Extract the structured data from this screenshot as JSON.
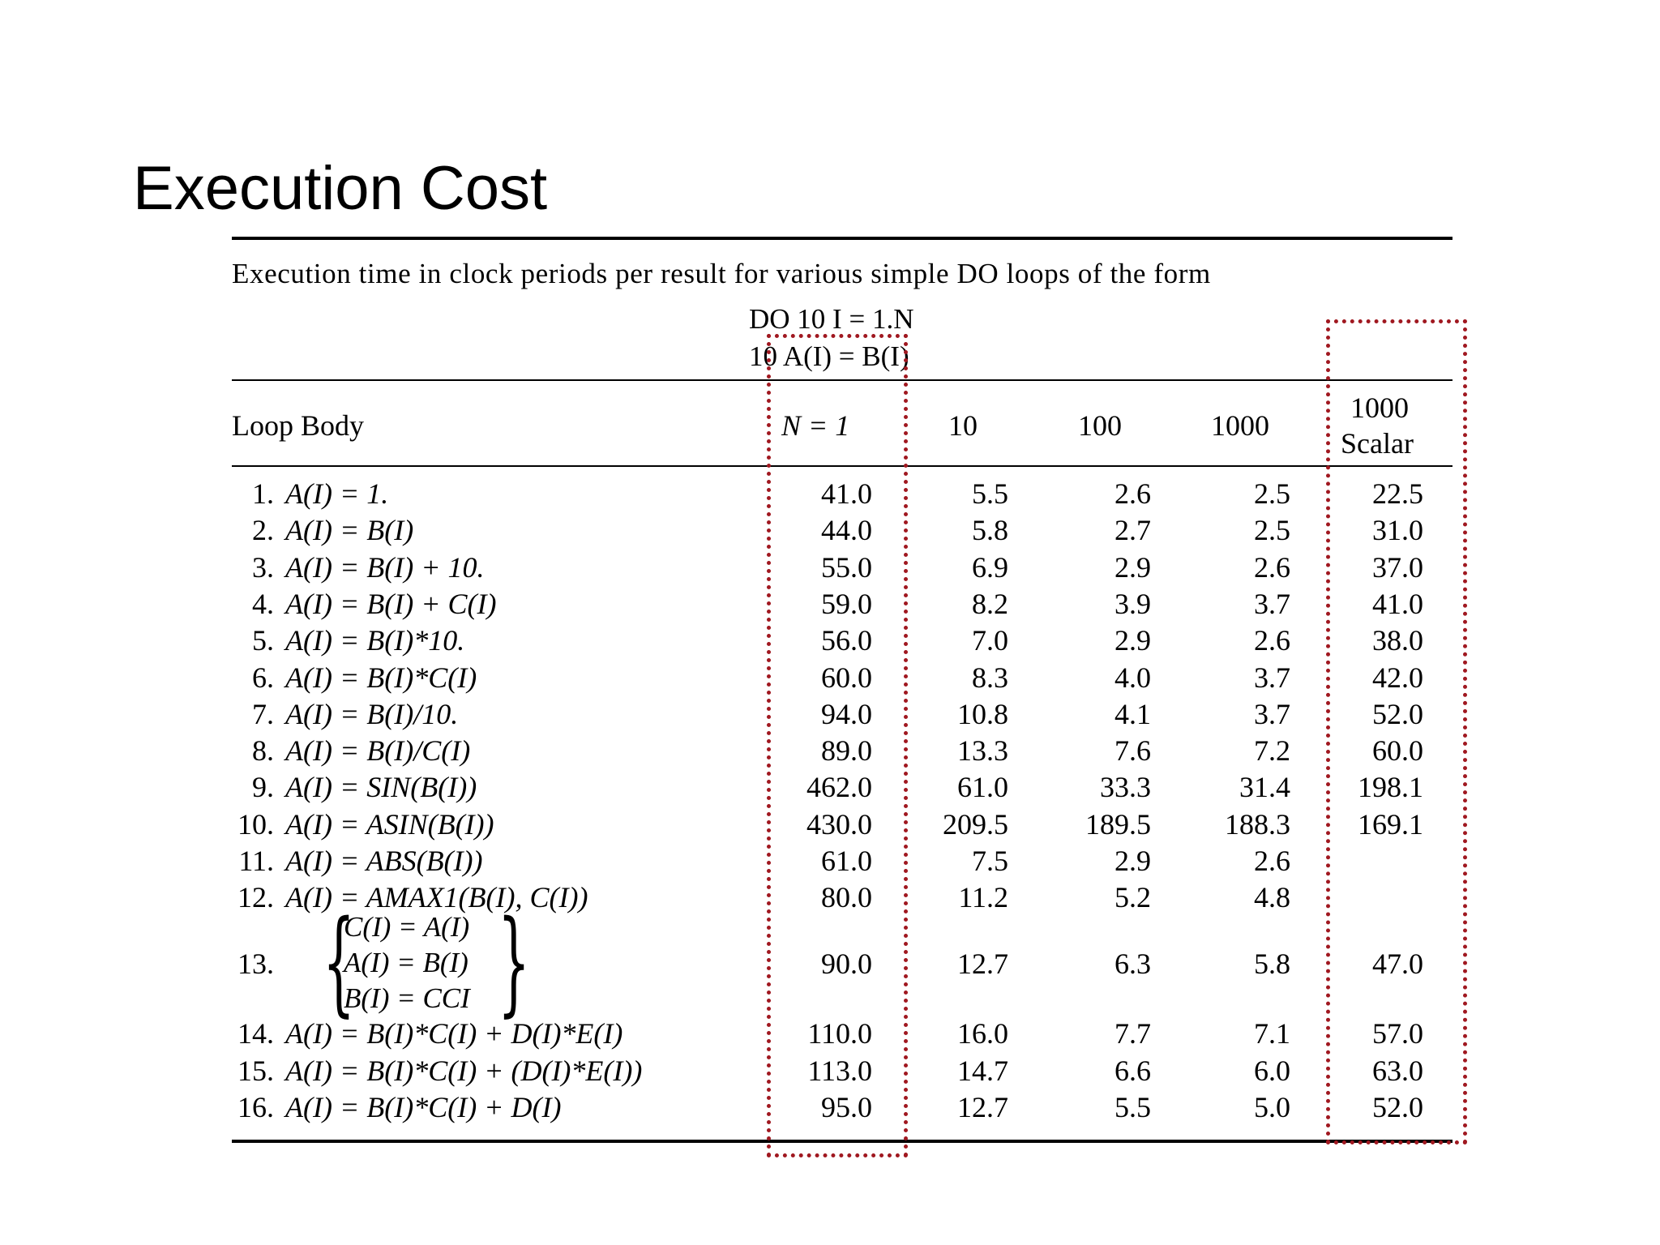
{
  "slide": {
    "title": "Execution Cost"
  },
  "table": {
    "caption": "Execution time in clock periods per result for various simple DO loops of the form",
    "form_line1": "DO 10 I = 1.N",
    "form_line2": "10 A(I) = B(I)",
    "headers": {
      "loop_body": "Loop Body",
      "n1": "N = 1",
      "c10": "10",
      "c100": "100",
      "c1000": "1000",
      "scalar_top": "1000",
      "scalar_bottom": "Scalar"
    },
    "rows": [
      {
        "idx": "1.",
        "body": "A(I) = 1.",
        "n1": "41.0",
        "c10": "5.5",
        "c100": "2.6",
        "c1000": "2.5",
        "scalar": "22.5"
      },
      {
        "idx": "2.",
        "body": "A(I) = B(I)",
        "n1": "44.0",
        "c10": "5.8",
        "c100": "2.7",
        "c1000": "2.5",
        "scalar": "31.0"
      },
      {
        "idx": "3.",
        "body": "A(I) = B(I) + 10.",
        "n1": "55.0",
        "c10": "6.9",
        "c100": "2.9",
        "c1000": "2.6",
        "scalar": "37.0"
      },
      {
        "idx": "4.",
        "body": "A(I) = B(I) + C(I)",
        "n1": "59.0",
        "c10": "8.2",
        "c100": "3.9",
        "c1000": "3.7",
        "scalar": "41.0"
      },
      {
        "idx": "5.",
        "body": "A(I) = B(I)*10.",
        "n1": "56.0",
        "c10": "7.0",
        "c100": "2.9",
        "c1000": "2.6",
        "scalar": "38.0"
      },
      {
        "idx": "6.",
        "body": "A(I) = B(I)*C(I)",
        "n1": "60.0",
        "c10": "8.3",
        "c100": "4.0",
        "c1000": "3.7",
        "scalar": "42.0"
      },
      {
        "idx": "7.",
        "body": "A(I) = B(I)/10.",
        "n1": "94.0",
        "c10": "10.8",
        "c100": "4.1",
        "c1000": "3.7",
        "scalar": "52.0"
      },
      {
        "idx": "8.",
        "body": "A(I) = B(I)/C(I)",
        "n1": "89.0",
        "c10": "13.3",
        "c100": "7.6",
        "c1000": "7.2",
        "scalar": "60.0"
      },
      {
        "idx": "9.",
        "body": "A(I) = SIN(B(I))",
        "n1": "462.0",
        "c10": "61.0",
        "c100": "33.3",
        "c1000": "31.4",
        "scalar": "198.1"
      },
      {
        "idx": "10.",
        "body": "A(I) = ASIN(B(I))",
        "n1": "430.0",
        "c10": "209.5",
        "c100": "189.5",
        "c1000": "188.3",
        "scalar": "169.1"
      },
      {
        "idx": "11.",
        "body": "A(I) = ABS(B(I))",
        "n1": "61.0",
        "c10": "7.5",
        "c100": "2.9",
        "c1000": "2.6",
        "scalar": ""
      },
      {
        "idx": "12.",
        "body": "A(I) = AMAX1(B(I), C(I))",
        "n1": "80.0",
        "c10": "11.2",
        "c100": "5.2",
        "c1000": "4.8",
        "scalar": ""
      }
    ],
    "row13": {
      "idx": "13.",
      "lines": [
        "C(I) = A(I)",
        "A(I) = B(I)",
        "B(I) = CCI"
      ],
      "n1": "90.0",
      "c10": "12.7",
      "c100": "6.3",
      "c1000": "5.8",
      "scalar": "47.0"
    },
    "rows_tail": [
      {
        "idx": "14.",
        "body": "A(I) = B(I)*C(I) + D(I)*E(I)",
        "n1": "110.0",
        "c10": "16.0",
        "c100": "7.7",
        "c1000": "7.1",
        "scalar": "57.0"
      },
      {
        "idx": "15.",
        "body": "A(I) = B(I)*C(I) + (D(I)*E(I))",
        "n1": "113.0",
        "c10": "14.7",
        "c100": "6.6",
        "c1000": "6.0",
        "scalar": "63.0"
      },
      {
        "idx": "16.",
        "body": "A(I) = B(I)*C(I) + D(I)",
        "n1": "95.0",
        "c10": "12.7",
        "c100": "5.5",
        "c1000": "5.0",
        "scalar": "52.0"
      }
    ]
  },
  "colors": {
    "highlight_box": "#a01820"
  }
}
